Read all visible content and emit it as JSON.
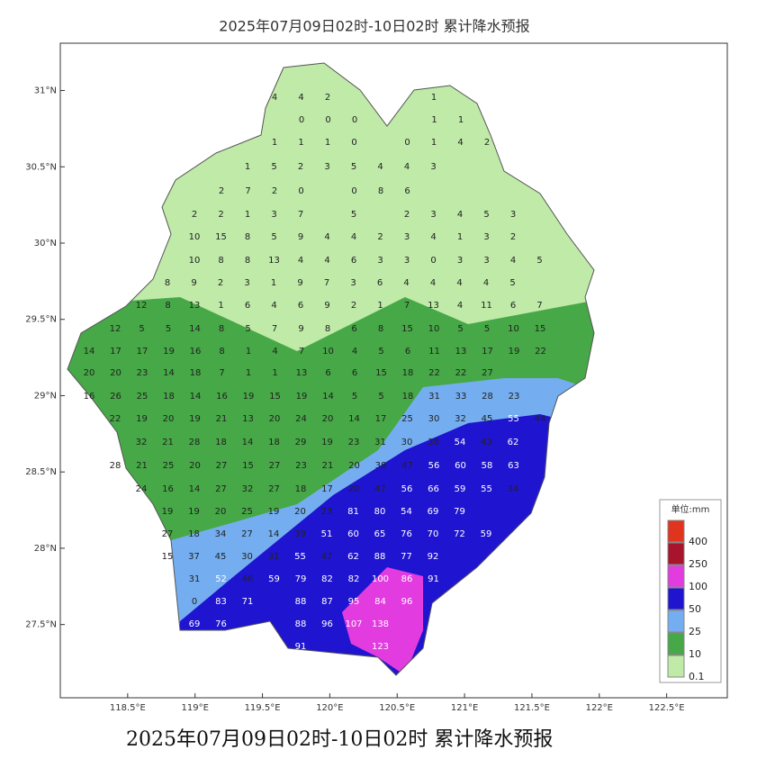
{
  "title": "2025年07月09日02时-10日02时  累计降水预报",
  "caption": "2025年07月09日02时-10日02时 累计降水预报",
  "xlim": [
    118.0,
    122.95
  ],
  "ylim": [
    27.02,
    31.31
  ],
  "xticks": [
    {
      "value": 118.5,
      "label": "118.5°E"
    },
    {
      "value": 119,
      "label": "119°E"
    },
    {
      "value": 119.5,
      "label": "119.5°E"
    },
    {
      "value": 120,
      "label": "120°E"
    },
    {
      "value": 120.5,
      "label": "120.5°E"
    },
    {
      "value": 121,
      "label": "121°E"
    },
    {
      "value": 121.5,
      "label": "121.5°E"
    },
    {
      "value": 122,
      "label": "122°E"
    },
    {
      "value": 122.5,
      "label": "122.5°E"
    }
  ],
  "yticks": [
    {
      "value": 31,
      "label": "31°N"
    },
    {
      "value": 30.5,
      "label": "30.5°N"
    },
    {
      "value": 30,
      "label": "30°N"
    },
    {
      "value": 29.5,
      "label": "29.5°N"
    },
    {
      "value": 29,
      "label": "29°N"
    },
    {
      "value": 28.5,
      "label": "28.5°N"
    },
    {
      "value": 28,
      "label": "28°N"
    },
    {
      "value": 27.5,
      "label": "27.5°N"
    }
  ],
  "legend": {
    "title": "单位:mm",
    "levels": [
      400,
      250,
      100,
      50,
      25,
      10,
      0.1
    ],
    "colors": [
      "#e0341e",
      "#a8142e",
      "#e23ce0",
      "#1f14d0",
      "#74aef0",
      "#46a846",
      "#bfeaa8"
    ]
  },
  "rows": [
    [
      4,
      4,
      2,
      null,
      null,
      null,
      1
    ],
    [
      0,
      0,
      0,
      null,
      null,
      1,
      1
    ],
    [
      1,
      1,
      1,
      0,
      null,
      0,
      1,
      4,
      2
    ],
    [
      1,
      5,
      2,
      3,
      5,
      4,
      4,
      3
    ],
    [
      2,
      7,
      2,
      0,
      null,
      0,
      8,
      6
    ],
    [
      2,
      2,
      1,
      3,
      7,
      null,
      5,
      null,
      2,
      3,
      4,
      5,
      3
    ],
    [
      10,
      15,
      8,
      5,
      9,
      4,
      4,
      2,
      3,
      4,
      1,
      3,
      2
    ],
    [
      10,
      8,
      8,
      13,
      4,
      4,
      6,
      3,
      3,
      0,
      3,
      3,
      4,
      5
    ],
    [
      8,
      9,
      2,
      3,
      1,
      9,
      7,
      3,
      6,
      4,
      4,
      4,
      4,
      5
    ],
    [
      12,
      8,
      13,
      1,
      6,
      4,
      6,
      9,
      2,
      1,
      7,
      13,
      4,
      11,
      6,
      7
    ],
    [
      12,
      5,
      5,
      14,
      8,
      5,
      7,
      9,
      8,
      6,
      8,
      15,
      10,
      5,
      5,
      10,
      15
    ],
    [
      14,
      17,
      17,
      19,
      16,
      8,
      1,
      4,
      7,
      10,
      4,
      5,
      6,
      11,
      13,
      17,
      19,
      22
    ],
    [
      20,
      20,
      23,
      14,
      18,
      7,
      1,
      1,
      13,
      6,
      6,
      15,
      18,
      22,
      22,
      27
    ],
    [
      16,
      26,
      25,
      18,
      14,
      16,
      19,
      15,
      19,
      14,
      5,
      5,
      18,
      31,
      33,
      28,
      23
    ],
    [
      22,
      19,
      20,
      19,
      21,
      13,
      20,
      24,
      20,
      14,
      17,
      25,
      30,
      32,
      45,
      55,
      44
    ],
    [
      32,
      21,
      28,
      18,
      14,
      18,
      29,
      19,
      23,
      31,
      30,
      38,
      54,
      43,
      62
    ],
    [
      28,
      21,
      25,
      20,
      27,
      15,
      27,
      23,
      21,
      20,
      38,
      47,
      56,
      60,
      58,
      63
    ],
    [
      24,
      16,
      14,
      27,
      32,
      27,
      18,
      17,
      20,
      47,
      56,
      66,
      59,
      55,
      34
    ],
    [
      19,
      19,
      20,
      25,
      19,
      20,
      23,
      81,
      80,
      54,
      69,
      79
    ],
    [
      27,
      18,
      34,
      27,
      14,
      39,
      51,
      60,
      65,
      76,
      70,
      72,
      59
    ],
    [
      15,
      37,
      45,
      30,
      31,
      55,
      47,
      62,
      88,
      77,
      92
    ],
    [
      31,
      52,
      46,
      59,
      79,
      82,
      82,
      100,
      86,
      91
    ],
    [
      0,
      83,
      71,
      null,
      88,
      87,
      95,
      84,
      96
    ],
    [
      69,
      76,
      null,
      null,
      88,
      96,
      107,
      138
    ],
    [
      91,
      null,
      null,
      123
    ]
  ]
}
